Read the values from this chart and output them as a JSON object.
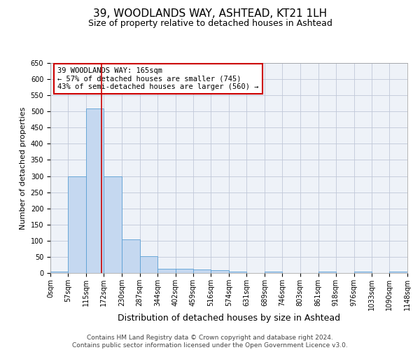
{
  "title1": "39, WOODLANDS WAY, ASHTEAD, KT21 1LH",
  "title2": "Size of property relative to detached houses in Ashtead",
  "xlabel": "Distribution of detached houses by size in Ashtead",
  "ylabel": "Number of detached properties",
  "bin_edges": [
    0,
    57,
    115,
    172,
    230,
    287,
    344,
    402,
    459,
    516,
    574,
    631,
    689,
    746,
    803,
    861,
    918,
    976,
    1033,
    1090,
    1148
  ],
  "bar_heights": [
    5,
    300,
    510,
    300,
    105,
    52,
    13,
    13,
    10,
    8,
    5,
    0,
    5,
    0,
    0,
    5,
    0,
    5,
    0,
    5
  ],
  "bar_color": "#c5d8f0",
  "bar_edge_color": "#5a9fd4",
  "grid_color": "#c0c8d8",
  "background_color": "#eef2f8",
  "vline_x": 165,
  "vline_color": "#cc0000",
  "annotation_text": "39 WOODLANDS WAY: 165sqm\n← 57% of detached houses are smaller (745)\n43% of semi-detached houses are larger (560) →",
  "annotation_box_color": "#cc0000",
  "ylim": [
    0,
    650
  ],
  "yticks": [
    0,
    50,
    100,
    150,
    200,
    250,
    300,
    350,
    400,
    450,
    500,
    550,
    600,
    650
  ],
  "tick_labels": [
    "0sqm",
    "57sqm",
    "115sqm",
    "172sqm",
    "230sqm",
    "287sqm",
    "344sqm",
    "402sqm",
    "459sqm",
    "516sqm",
    "574sqm",
    "631sqm",
    "689sqm",
    "746sqm",
    "803sqm",
    "861sqm",
    "918sqm",
    "976sqm",
    "1033sqm",
    "1090sqm",
    "1148sqm"
  ],
  "footer_text": "Contains HM Land Registry data © Crown copyright and database right 2024.\nContains public sector information licensed under the Open Government Licence v3.0.",
  "title1_fontsize": 11,
  "title2_fontsize": 9,
  "xlabel_fontsize": 9,
  "ylabel_fontsize": 8,
  "tick_fontsize": 7,
  "footer_fontsize": 6.5,
  "annotation_fontsize": 7.5
}
